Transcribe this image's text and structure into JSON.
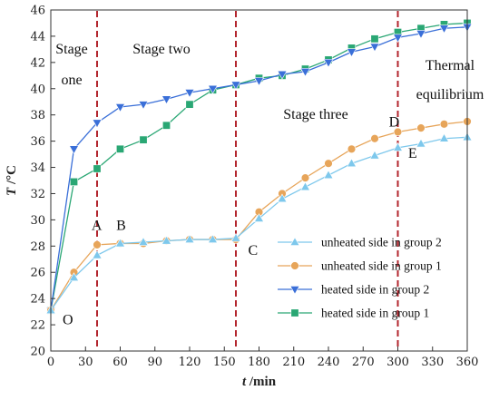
{
  "chart_data": {
    "type": "line",
    "xlabel": {
      "var": "t",
      "unit": " /min"
    },
    "ylabel": {
      "var": "T",
      "unit": " /°C"
    },
    "xlim": [
      0,
      360
    ],
    "ylim": [
      20,
      46
    ],
    "xticks": [
      0,
      30,
      60,
      90,
      120,
      150,
      180,
      210,
      240,
      270,
      300,
      330,
      360
    ],
    "yticks": [
      20,
      22,
      24,
      26,
      28,
      30,
      32,
      34,
      36,
      38,
      40,
      42,
      44,
      46
    ],
    "grid": false,
    "legend_position": "lower-right",
    "stage_dividers": [
      40,
      160,
      300
    ],
    "stage_labels": [
      {
        "text": "Stage",
        "x": 0,
        "y": 44.7
      },
      {
        "text": "one",
        "x": 0,
        "y": 42.0
      },
      {
        "text": "Stage two",
        "x": 0,
        "y": 44.7
      },
      {
        "text": "Stage three",
        "x": 0,
        "y": 38.0
      },
      {
        "text": "Thermal",
        "x": 0,
        "y": 42.0
      },
      {
        "text": "equilibrium",
        "x": 0,
        "y": 39.5
      }
    ],
    "point_labels": [
      {
        "text": "O",
        "x": 3,
        "y": 22.3
      },
      {
        "text": "A",
        "x": 28,
        "y": 29.5
      },
      {
        "text": "B",
        "x": 49,
        "y": 29.5
      },
      {
        "text": "C",
        "x": 163,
        "y": 27.6
      },
      {
        "text": "D",
        "x": 285,
        "y": 37.4
      },
      {
        "text": "E",
        "x": 301,
        "y": 35.0
      }
    ],
    "series": [
      {
        "name": "unheated side in group 2",
        "color": "#7ec8ec",
        "marker": "triangle-up",
        "x": [
          0,
          20,
          40,
          60,
          80,
          100,
          120,
          140,
          160,
          180,
          200,
          220,
          240,
          260,
          280,
          300,
          320,
          340,
          360
        ],
        "values": [
          23.1,
          25.6,
          27.3,
          28.2,
          28.3,
          28.4,
          28.5,
          28.5,
          28.6,
          30.1,
          31.6,
          32.5,
          33.4,
          34.3,
          34.9,
          35.5,
          35.8,
          36.2,
          36.3
        ]
      },
      {
        "name": "unheated side in group 1",
        "color": "#e7a55a",
        "marker": "circle",
        "x": [
          0,
          20,
          40,
          60,
          80,
          100,
          120,
          140,
          160,
          180,
          200,
          220,
          240,
          260,
          280,
          300,
          320,
          340,
          360
        ],
        "values": [
          23.1,
          26.0,
          28.1,
          28.2,
          28.2,
          28.4,
          28.5,
          28.5,
          28.5,
          30.6,
          32.0,
          33.2,
          34.3,
          35.4,
          36.2,
          36.7,
          37.0,
          37.3,
          37.5
        ]
      },
      {
        "name": "heated side in group 2",
        "color": "#3a6fd8",
        "marker": "triangle-down",
        "x": [
          0,
          20,
          40,
          60,
          80,
          100,
          120,
          140,
          160,
          180,
          200,
          220,
          240,
          260,
          280,
          300,
          320,
          340,
          360
        ],
        "values": [
          23.1,
          35.4,
          37.4,
          38.6,
          38.8,
          39.2,
          39.7,
          40.0,
          40.3,
          40.6,
          41.1,
          41.3,
          42.0,
          42.8,
          43.2,
          43.9,
          44.2,
          44.6,
          44.7
        ]
      },
      {
        "name": "heated side in group 1",
        "color": "#2aa774",
        "marker": "square",
        "x": [
          0,
          20,
          40,
          60,
          80,
          100,
          120,
          140,
          160,
          180,
          200,
          220,
          240,
          260,
          280,
          300,
          320,
          340,
          360
        ],
        "values": [
          23.1,
          32.9,
          33.9,
          35.4,
          36.1,
          37.2,
          38.8,
          39.9,
          40.3,
          40.8,
          41.0,
          41.5,
          42.2,
          43.1,
          43.8,
          44.3,
          44.6,
          44.9,
          45.0
        ]
      }
    ]
  }
}
